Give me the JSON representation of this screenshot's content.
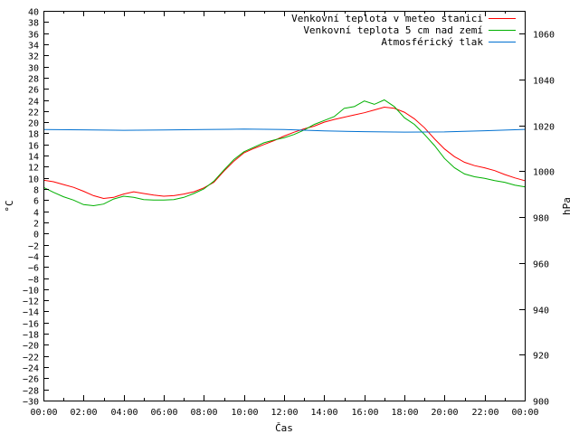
{
  "chart_data": {
    "type": "line",
    "xlabel": "Čas",
    "ylabel_left": "°C",
    "ylabel_right": "hPa",
    "x_ticks": [
      "00:00",
      "02:00",
      "04:00",
      "06:00",
      "08:00",
      "10:00",
      "12:00",
      "14:00",
      "16:00",
      "18:00",
      "20:00",
      "22:00",
      "00:00"
    ],
    "xlim_hours": [
      0,
      24
    ],
    "ylim_left": [
      -30,
      40
    ],
    "ylim_right": [
      900,
      1070
    ],
    "y_left_ticks": [
      -30,
      -28,
      -26,
      -24,
      -22,
      -20,
      -18,
      -16,
      -14,
      -12,
      -10,
      -8,
      -6,
      -4,
      -2,
      0,
      2,
      4,
      6,
      8,
      10,
      12,
      14,
      16,
      18,
      20,
      22,
      24,
      26,
      28,
      30,
      32,
      34,
      36,
      38,
      40
    ],
    "y_right_ticks": [
      900,
      920,
      940,
      960,
      980,
      1000,
      1020,
      1040,
      1060
    ],
    "legend_position": "top-right",
    "series": [
      {
        "name": "Venkovní teplota v meteo stanici",
        "color": "#ff0000",
        "axis": "left",
        "x": [
          0,
          0.5,
          1,
          1.5,
          2,
          2.5,
          3,
          3.5,
          4,
          4.5,
          5,
          5.5,
          6,
          6.5,
          7,
          7.5,
          8,
          8.5,
          9,
          9.5,
          10,
          10.5,
          11,
          11.5,
          12,
          12.5,
          13,
          13.5,
          14,
          14.5,
          15,
          15.5,
          16,
          16.5,
          17,
          17.5,
          18,
          18.5,
          19,
          19.5,
          20,
          20.5,
          21,
          21.5,
          22,
          22.5,
          23,
          23.5,
          24
        ],
        "y": [
          9.6,
          9.3,
          8.8,
          8.3,
          7.6,
          6.8,
          6.3,
          6.5,
          7.1,
          7.5,
          7.2,
          6.9,
          6.7,
          6.8,
          7.1,
          7.5,
          8.2,
          9.2,
          11.2,
          13,
          14.5,
          15.3,
          16,
          16.7,
          17.5,
          18.2,
          18.8,
          19.3,
          20,
          20.5,
          20.9,
          21.3,
          21.7,
          22.2,
          22.7,
          22.5,
          21.8,
          20.6,
          19,
          17,
          15.2,
          13.8,
          12.8,
          12.2,
          11.8,
          11.3,
          10.6,
          10,
          9.5
        ]
      },
      {
        "name": "Venkovní teplota 5 cm nad zemí",
        "color": "#00b000",
        "axis": "left",
        "x": [
          0,
          0.5,
          1,
          1.5,
          2,
          2.5,
          3,
          3.5,
          4,
          4.5,
          5,
          5.5,
          6,
          6.5,
          7,
          7.5,
          8,
          8.5,
          9,
          9.5,
          10,
          10.5,
          11,
          11.5,
          12,
          12.5,
          13,
          13.5,
          14,
          14.5,
          15,
          15.5,
          16,
          16.5,
          17,
          17.5,
          18,
          18.5,
          19,
          19.5,
          20,
          20.5,
          21,
          21.5,
          22,
          22.5,
          23,
          23.5,
          24
        ],
        "y": [
          8.3,
          7.4,
          6.6,
          6,
          5.2,
          5,
          5.3,
          6.2,
          6.7,
          6.5,
          6.1,
          6,
          6,
          6.1,
          6.5,
          7.2,
          8,
          9.4,
          11.4,
          13.3,
          14.7,
          15.5,
          16.3,
          16.8,
          17.2,
          17.8,
          18.6,
          19.6,
          20.3,
          21,
          22.5,
          22.8,
          23.8,
          23.2,
          24,
          22.8,
          20.8,
          19.6,
          17.8,
          15.8,
          13.5,
          11.8,
          10.7,
          10.2,
          9.9,
          9.5,
          9.2,
          8.7,
          8.4
        ]
      },
      {
        "name": "Atmosférický tlak",
        "color": "#0070d0",
        "axis": "right",
        "x": [
          0,
          2,
          4,
          6,
          8,
          10,
          12,
          14,
          16,
          18,
          20,
          22,
          24
        ],
        "y": [
          1018.2,
          1018.1,
          1017.9,
          1018,
          1018.2,
          1018.4,
          1018.2,
          1017.6,
          1017.3,
          1017.1,
          1017.2,
          1017.7,
          1018.3
        ]
      }
    ]
  }
}
